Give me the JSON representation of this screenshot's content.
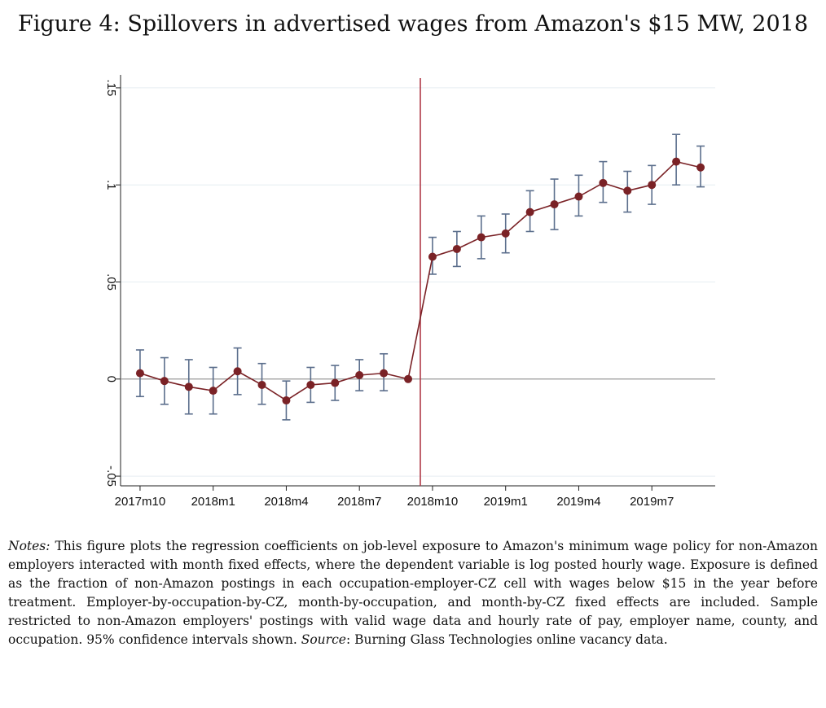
{
  "title": "Figure 4: Spillovers in advertised wages from Amazon's $15 MW, 2018",
  "chart_data": {
    "type": "scatter",
    "style": "connected points with 95% confidence interval error bars",
    "title": "Figure 4: Spillovers in advertised wages from Amazon's $15 MW, 2018",
    "xlabel": "",
    "ylabel": "",
    "ylim": [
      -0.055,
      0.155
    ],
    "yticks": [
      -0.05,
      0,
      0.05,
      0.1,
      0.15
    ],
    "ytick_labels": [
      "-.05",
      "0",
      ".05",
      ".1",
      ".15"
    ],
    "xtick_index": [
      0,
      3,
      6,
      9,
      12,
      15,
      18,
      21
    ],
    "xtick_labels": [
      "2017m10",
      "2018m1",
      "2018m4",
      "2018m7",
      "2018m10",
      "2019m1",
      "2019m4",
      "2019m7"
    ],
    "treatment_line_index": 11.5,
    "reference_line_y": 0,
    "colors": {
      "line": "#7a2226",
      "marker": "#7a2226",
      "ci": "#5b6e8c",
      "treatment": "#b03a48",
      "zero": "#999999"
    },
    "series": [
      {
        "name": "coefficient",
        "x_index": [
          0,
          1,
          2,
          3,
          4,
          5,
          6,
          7,
          8,
          9,
          10,
          11,
          12,
          13,
          14,
          15,
          16,
          17,
          18,
          19,
          20,
          21,
          22,
          23
        ],
        "values": [
          0.003,
          -0.001,
          -0.004,
          -0.006,
          0.004,
          -0.003,
          -0.011,
          -0.003,
          -0.002,
          0.002,
          0.003,
          0.0,
          0.063,
          0.067,
          0.073,
          0.075,
          0.086,
          0.09,
          0.094,
          0.101,
          0.097,
          0.1,
          0.112,
          0.109
        ],
        "ci_low": [
          -0.009,
          -0.013,
          -0.018,
          -0.018,
          -0.008,
          -0.013,
          -0.021,
          -0.012,
          -0.011,
          -0.006,
          -0.006,
          null,
          0.054,
          0.058,
          0.062,
          0.065,
          0.076,
          0.077,
          0.084,
          0.091,
          0.086,
          0.09,
          0.1,
          0.099
        ],
        "ci_high": [
          0.015,
          0.011,
          0.01,
          0.006,
          0.016,
          0.008,
          -0.001,
          0.006,
          0.007,
          0.01,
          0.013,
          null,
          0.073,
          0.076,
          0.084,
          0.085,
          0.097,
          0.103,
          0.105,
          0.112,
          0.107,
          0.11,
          0.126,
          0.12
        ]
      }
    ]
  },
  "notes": {
    "notes_label": "Notes:",
    "notes_text": " This figure plots the regression coefficients on job-level exposure to Amazon's minimum wage policy for non-Amazon employers interacted with month fixed effects, where the dependent variable is log posted hourly wage. Exposure is defined as the fraction of non-Amazon postings in each occupation-employer-CZ cell with wages below $15 in the year before treatment. Employer-by-occupation-by-CZ, month-by-occupation, and month-by-CZ fixed effects are included. Sample restricted to non-Amazon employers' postings with valid wage data and hourly rate of pay, employer name, county, and occupation. 95% confidence intervals shown. ",
    "source_label": "Source",
    "source_text": ": Burning Glass Technologies online vacancy data."
  }
}
